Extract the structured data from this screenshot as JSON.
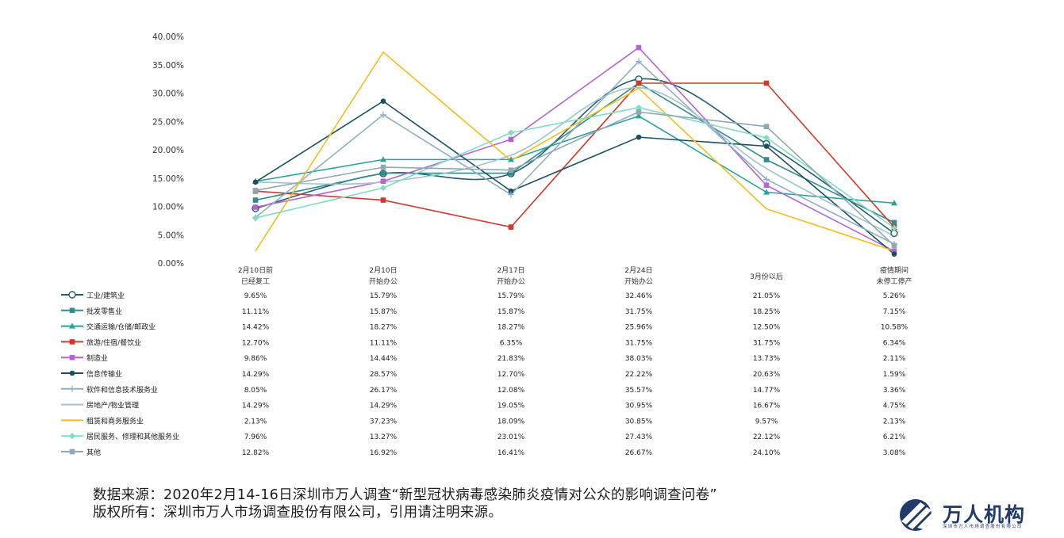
{
  "chart_data": {
    "type": "line",
    "title": "",
    "xlabel": "",
    "ylabel": "",
    "ylim": [
      0,
      40
    ],
    "yticks": [
      "0.00%",
      "5.00%",
      "10.00%",
      "15.00%",
      "20.00%",
      "25.00%",
      "30.00%",
      "35.00%",
      "40.00%"
    ],
    "categories": [
      [
        "2月10日前",
        "已经复工"
      ],
      [
        "2月10日",
        "开始办公"
      ],
      [
        "2月17日",
        "开始办公"
      ],
      [
        "2月24日",
        "开始办公"
      ],
      [
        "3月份以后"
      ],
      [
        "疫情期间",
        "未停工停产"
      ]
    ],
    "series": [
      {
        "name": "工业/建筑业",
        "color": "#215f72",
        "marker": "circle-open",
        "smooth": true,
        "values": [
          9.65,
          15.79,
          15.79,
          32.46,
          21.05,
          5.26
        ],
        "labels": [
          "9.65%",
          "15.79%",
          "15.79%",
          "32.46%",
          "21.05%",
          "5.26%"
        ]
      },
      {
        "name": "批发零售业",
        "color": "#2f8c8a",
        "marker": "square",
        "smooth": false,
        "values": [
          11.11,
          15.87,
          15.87,
          31.75,
          18.25,
          7.15
        ],
        "labels": [
          "11.11%",
          "15.87%",
          "15.87%",
          "31.75%",
          "18.25%",
          "7.15%"
        ]
      },
      {
        "name": "交通运输/仓储/邮政业",
        "color": "#2aa3a0",
        "marker": "triangle",
        "smooth": false,
        "values": [
          14.42,
          18.27,
          18.27,
          25.96,
          12.5,
          10.58
        ],
        "labels": [
          "14.42%",
          "18.27%",
          "18.27%",
          "25.96%",
          "12.50%",
          "10.58%"
        ]
      },
      {
        "name": "旅游/住宿/餐饮业",
        "color": "#d0382b",
        "marker": "square",
        "smooth": false,
        "values": [
          12.7,
          11.11,
          6.35,
          31.75,
          31.75,
          6.34
        ],
        "labels": [
          "12.70%",
          "11.11%",
          "6.35%",
          "31.75%",
          "31.75%",
          "6.34%"
        ]
      },
      {
        "name": "制造业",
        "color": "#b264d4",
        "marker": "square",
        "smooth": false,
        "values": [
          9.86,
          14.44,
          21.83,
          38.03,
          13.73,
          2.11
        ],
        "labels": [
          "9.86%",
          "14.44%",
          "21.83%",
          "38.03%",
          "13.73%",
          "2.11%"
        ]
      },
      {
        "name": "信息传输业",
        "color": "#17505f",
        "marker": "circle",
        "smooth": false,
        "values": [
          14.29,
          28.57,
          12.7,
          22.22,
          20.63,
          1.59
        ],
        "labels": [
          "14.29%",
          "28.57%",
          "12.70%",
          "22.22%",
          "20.63%",
          "1.59%"
        ]
      },
      {
        "name": "软件和信息技术服务业",
        "color": "#8fb0c4",
        "marker": "plus",
        "smooth": false,
        "values": [
          8.05,
          26.17,
          12.08,
          35.57,
          14.77,
          3.36
        ],
        "labels": [
          "8.05%",
          "26.17%",
          "12.08%",
          "35.57%",
          "14.77%",
          "3.36%"
        ]
      },
      {
        "name": "房地产/物业管理",
        "color": "#9ec3c8",
        "marker": "none",
        "smooth": true,
        "values": [
          14.29,
          14.29,
          19.05,
          30.95,
          16.67,
          4.75
        ],
        "labels": [
          "14.29%",
          "14.29%",
          "19.05%",
          "30.95%",
          "16.67%",
          "4.75%"
        ]
      },
      {
        "name": "租赁和商务服务业",
        "color": "#f3bd1c",
        "marker": "none",
        "smooth": false,
        "values": [
          2.13,
          37.23,
          18.09,
          30.85,
          9.57,
          2.13
        ],
        "labels": [
          "2.13%",
          "37.23%",
          "18.09%",
          "30.85%",
          "9.57%",
          "2.13%"
        ]
      },
      {
        "name": "居民服务、修理和其他服务业",
        "color": "#7fdcc2",
        "marker": "diamond",
        "smooth": false,
        "values": [
          7.96,
          13.27,
          23.01,
          27.43,
          22.12,
          6.21
        ],
        "labels": [
          "7.96%",
          "13.27%",
          "23.01%",
          "27.43%",
          "22.12%",
          "6.21%"
        ]
      },
      {
        "name": "其他",
        "color": "#8ea9b3",
        "marker": "square",
        "smooth": false,
        "values": [
          12.82,
          16.92,
          16.41,
          26.67,
          24.1,
          3.08
        ],
        "labels": [
          "12.82%",
          "16.92%",
          "16.41%",
          "26.67%",
          "24.10%",
          "3.08%"
        ]
      }
    ]
  },
  "footer": {
    "source": "数据来源：2020年2月14-16日深圳市万人调查“新型冠状病毒感染肺炎疫情对公众的影响调查问卷”",
    "copyright": "版权所有：深圳市万人市场调查股份有限公司，引用请注明来源。"
  },
  "logo": {
    "name": "万人机构",
    "subtitle": "深圳市万人市场调查股份有限公司",
    "color": "#1f3a6b"
  }
}
